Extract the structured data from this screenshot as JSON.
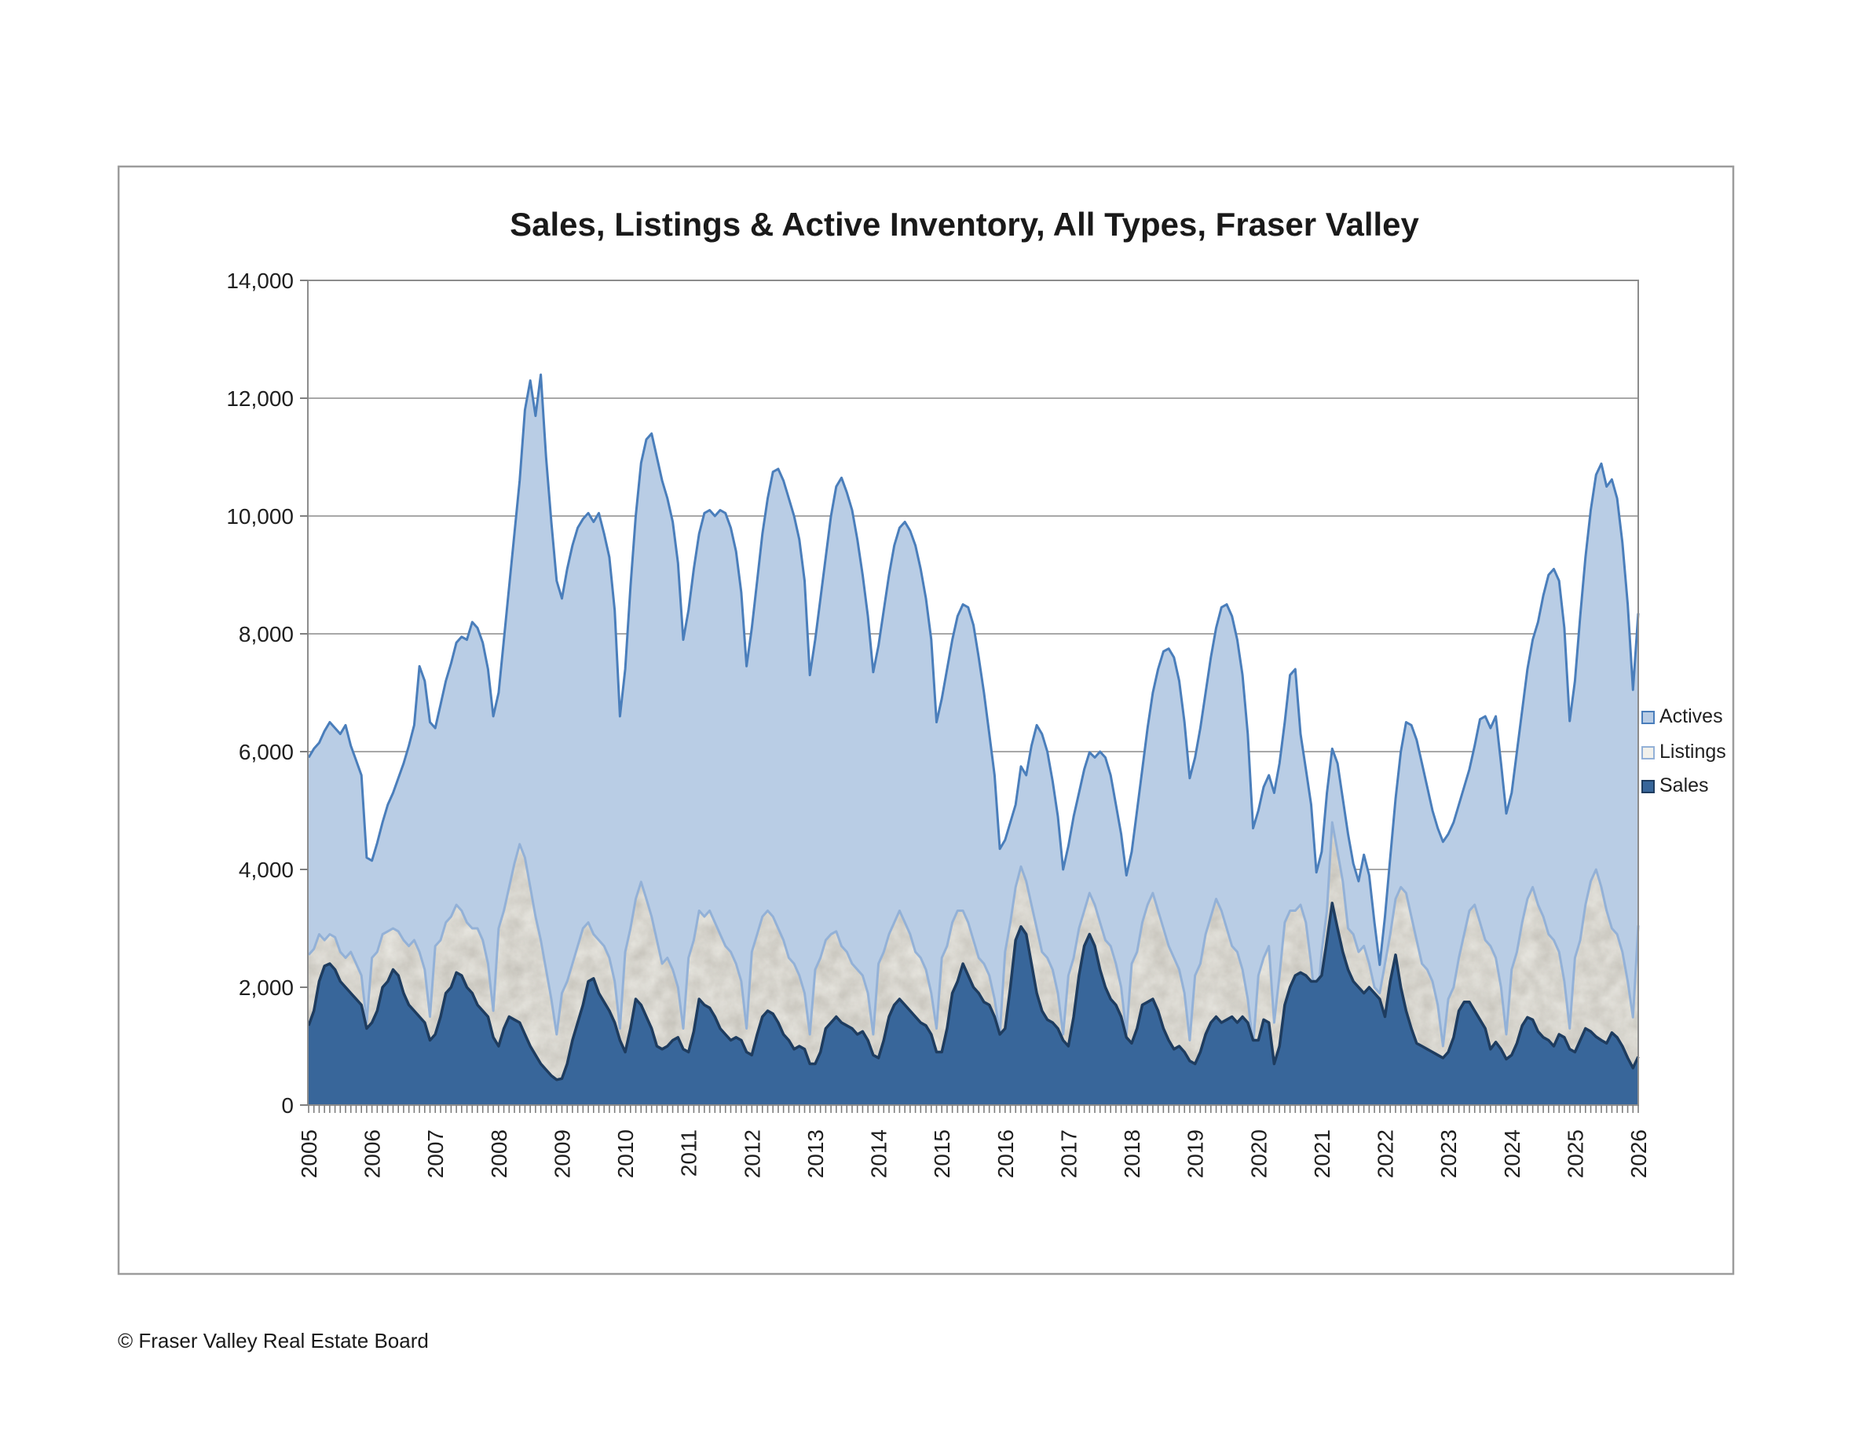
{
  "title": "Sales, Listings & Active Inventory, All Types, Fraser Valley",
  "footer": "© Fraser Valley Real Estate Board",
  "legend": {
    "position": "right",
    "items": [
      "Actives",
      "Listings",
      "Sales"
    ]
  },
  "colors": {
    "actives_fill": "#B9CDE5",
    "actives_border": "#4A7EBB",
    "listings_fill": "#F2F1EB",
    "listings_border": "#93B1D7",
    "listings_texture": "#AFABA2",
    "sales_fill": "#38669A",
    "sales_border": "#1E3C5F",
    "gridline": "#8C8C8C",
    "axis": "#7F7F7F",
    "chart_border": "#9C9C9C"
  },
  "chart_data": {
    "type": "area",
    "mode": "overlapping",
    "title": "Sales, Listings & Active Inventory, All Types, Fraser Valley",
    "xlabel": "",
    "ylabel": "",
    "x_start": "2005-01",
    "x_end": "2026-01",
    "x_frequency": "monthly",
    "x_tick_labels": [
      "2005",
      "2006",
      "2007",
      "2008",
      "2009",
      "2010",
      "2011",
      "2012",
      "2013",
      "2014",
      "2015",
      "2016",
      "2017",
      "2018",
      "2019",
      "2020",
      "2021",
      "2022",
      "2023",
      "2024",
      "2025",
      "2026"
    ],
    "ylim": [
      0,
      14000
    ],
    "y_ticks": [
      0,
      2000,
      4000,
      6000,
      8000,
      10000,
      12000,
      14000
    ],
    "y_tick_labels": [
      "0",
      "2,000",
      "4,000",
      "6,000",
      "8,000",
      "10,000",
      "12,000",
      "14,000"
    ],
    "grid": "horizontal",
    "legend_position": "right",
    "series": [
      {
        "name": "Actives",
        "values_by_year": [
          [
            5900,
            6050,
            6150,
            6350,
            6500,
            6400,
            6300,
            6450,
            6100,
            5850,
            5600,
            4200
          ],
          [
            4150,
            4450,
            4800,
            5100,
            5300,
            5550,
            5800,
            6100,
            6450,
            7450,
            7200,
            6500
          ],
          [
            6400,
            6800,
            7200,
            7500,
            7850,
            7950,
            7900,
            8200,
            8100,
            7850,
            7400,
            6600
          ],
          [
            7000,
            7900,
            8800,
            9700,
            10600,
            11800,
            12300,
            11700,
            12400,
            11000,
            9900,
            8900
          ],
          [
            8600,
            9100,
            9500,
            9800,
            9950,
            10050,
            9900,
            10050,
            9700,
            9300,
            8400,
            6600
          ],
          [
            7400,
            8800,
            10000,
            10900,
            11300,
            11400,
            11000,
            10600,
            10300,
            9900,
            9200,
            7900
          ],
          [
            8400,
            9100,
            9700,
            10050,
            10100,
            10000,
            10100,
            10050,
            9800,
            9400,
            8700,
            7450
          ],
          [
            8100,
            8900,
            9700,
            10300,
            10750,
            10800,
            10600,
            10300,
            10000,
            9600,
            8900,
            7300
          ],
          [
            7900,
            8600,
            9300,
            10000,
            10500,
            10650,
            10400,
            10100,
            9600,
            9000,
            8300,
            7350
          ],
          [
            7800,
            8400,
            9000,
            9500,
            9800,
            9900,
            9750,
            9500,
            9100,
            8600,
            7900,
            6500
          ],
          [
            6900,
            7400,
            7900,
            8300,
            8500,
            8450,
            8150,
            7600,
            7000,
            6300,
            5600,
            4350
          ],
          [
            4500,
            4800,
            5100,
            5750,
            5600,
            6100,
            6450,
            6300,
            6000,
            5500,
            4900,
            4000
          ],
          [
            4400,
            4900,
            5300,
            5700,
            5990,
            5900,
            6000,
            5900,
            5600,
            5100,
            4600,
            3900
          ],
          [
            4300,
            5000,
            5700,
            6400,
            7000,
            7400,
            7700,
            7750,
            7600,
            7200,
            6500,
            5550
          ],
          [
            5900,
            6400,
            7000,
            7600,
            8100,
            8450,
            8500,
            8300,
            7900,
            7300,
            6300,
            4700
          ],
          [
            5000,
            5400,
            5600,
            5300,
            5800,
            6500,
            7300,
            7400,
            6300,
            5700,
            5100,
            3950
          ],
          [
            4300,
            5300,
            6050,
            5800,
            5200,
            4600,
            4100,
            3800,
            4250,
            3900,
            3100,
            2380
          ],
          [
            3200,
            4200,
            5200,
            6000,
            6500,
            6450,
            6200,
            5800,
            5400,
            5000,
            4700,
            4470
          ],
          [
            4600,
            4800,
            5100,
            5400,
            5700,
            6100,
            6550,
            6600,
            6400,
            6600,
            5800,
            4950
          ],
          [
            5300,
            6000,
            6700,
            7400,
            7900,
            8200,
            8650,
            9000,
            9100,
            8900,
            8100,
            6520
          ],
          [
            7200,
            8300,
            9300,
            10100,
            10700,
            10890,
            10500,
            10620,
            10300,
            9550,
            8500,
            7050
          ],
          [
            8350
          ]
        ]
      },
      {
        "name": "Listings",
        "values_by_year": [
          [
            2550,
            2650,
            2900,
            2800,
            2900,
            2850,
            2600,
            2500,
            2600,
            2400,
            2200,
            1400
          ],
          [
            2500,
            2600,
            2900,
            2950,
            3000,
            2950,
            2800,
            2700,
            2800,
            2600,
            2300,
            1500
          ],
          [
            2700,
            2800,
            3100,
            3200,
            3400,
            3300,
            3100,
            3000,
            3000,
            2800,
            2400,
            1600
          ],
          [
            3000,
            3300,
            3700,
            4100,
            4430,
            4200,
            3700,
            3200,
            2800,
            2300,
            1800,
            1200
          ],
          [
            1900,
            2100,
            2400,
            2700,
            3000,
            3100,
            2900,
            2800,
            2700,
            2500,
            2100,
            1300
          ],
          [
            2600,
            3000,
            3500,
            3790,
            3500,
            3200,
            2800,
            2400,
            2500,
            2300,
            2000,
            1300
          ],
          [
            2500,
            2800,
            3300,
            3200,
            3300,
            3100,
            2900,
            2700,
            2600,
            2400,
            2100,
            1300
          ],
          [
            2600,
            2900,
            3200,
            3300,
            3200,
            3000,
            2800,
            2500,
            2400,
            2200,
            1900,
            1200
          ],
          [
            2300,
            2500,
            2800,
            2900,
            2950,
            2700,
            2600,
            2400,
            2300,
            2200,
            1900,
            1200
          ],
          [
            2400,
            2600,
            2900,
            3100,
            3300,
            3100,
            2900,
            2600,
            2500,
            2300,
            1900,
            1300
          ],
          [
            2500,
            2700,
            3100,
            3300,
            3300,
            3100,
            2800,
            2500,
            2400,
            2200,
            1800,
            1200
          ],
          [
            2600,
            3100,
            3700,
            4050,
            3800,
            3400,
            3000,
            2600,
            2500,
            2300,
            1900,
            1200
          ],
          [
            2200,
            2500,
            3000,
            3300,
            3600,
            3400,
            3100,
            2800,
            2700,
            2400,
            2000,
            1200
          ],
          [
            2400,
            2600,
            3100,
            3400,
            3600,
            3300,
            3000,
            2700,
            2500,
            2300,
            1900,
            1100
          ],
          [
            2200,
            2400,
            2900,
            3200,
            3500,
            3300,
            3000,
            2700,
            2600,
            2300,
            1800,
            1000
          ],
          [
            2200,
            2500,
            2700,
            1400,
            2200,
            3100,
            3300,
            3300,
            3400,
            3100,
            2400,
            1500
          ],
          [
            2600,
            3300,
            4800,
            4300,
            3800,
            3000,
            2900,
            2600,
            2700,
            2400,
            2000,
            1900
          ],
          [
            2400,
            2900,
            3500,
            3700,
            3600,
            3200,
            2800,
            2400,
            2300,
            2100,
            1700,
            1000
          ],
          [
            1800,
            2000,
            2500,
            2900,
            3300,
            3400,
            3100,
            2800,
            2700,
            2500,
            2000,
            1200
          ],
          [
            2300,
            2600,
            3100,
            3500,
            3700,
            3400,
            3200,
            2900,
            2800,
            2600,
            2100,
            1300
          ],
          [
            2500,
            2800,
            3400,
            3800,
            4000,
            3700,
            3300,
            3000,
            2900,
            2600,
            2100,
            1490
          ],
          [
            3050
          ]
        ]
      },
      {
        "name": "Sales",
        "values_by_year": [
          [
            1350,
            1600,
            2100,
            2360,
            2400,
            2300,
            2100,
            2000,
            1900,
            1800,
            1700,
            1300
          ],
          [
            1400,
            1600,
            2000,
            2100,
            2300,
            2200,
            1900,
            1700,
            1600,
            1500,
            1400,
            1100
          ],
          [
            1200,
            1500,
            1900,
            2000,
            2250,
            2200,
            2000,
            1900,
            1700,
            1600,
            1500,
            1150
          ],
          [
            1000,
            1300,
            1500,
            1450,
            1400,
            1200,
            1000,
            850,
            700,
            600,
            500,
            430
          ],
          [
            450,
            700,
            1100,
            1400,
            1700,
            2100,
            2150,
            1900,
            1750,
            1600,
            1400,
            1100
          ],
          [
            900,
            1300,
            1800,
            1700,
            1500,
            1300,
            1000,
            950,
            1000,
            1100,
            1150,
            950
          ],
          [
            900,
            1250,
            1800,
            1700,
            1650,
            1500,
            1300,
            1200,
            1100,
            1150,
            1100,
            900
          ],
          [
            850,
            1200,
            1500,
            1600,
            1550,
            1400,
            1200,
            1100,
            950,
            1000,
            950,
            700
          ],
          [
            700,
            900,
            1300,
            1400,
            1500,
            1400,
            1350,
            1300,
            1200,
            1250,
            1100,
            850
          ],
          [
            800,
            1100,
            1500,
            1700,
            1800,
            1700,
            1600,
            1500,
            1400,
            1350,
            1200,
            900
          ],
          [
            900,
            1300,
            1900,
            2100,
            2400,
            2200,
            2000,
            1900,
            1750,
            1700,
            1500,
            1200
          ],
          [
            1300,
            2000,
            2800,
            3030,
            2900,
            2400,
            1900,
            1600,
            1450,
            1400,
            1300,
            1100
          ],
          [
            1000,
            1500,
            2200,
            2700,
            2900,
            2700,
            2300,
            2000,
            1800,
            1700,
            1500,
            1150
          ],
          [
            1050,
            1300,
            1700,
            1750,
            1800,
            1600,
            1300,
            1100,
            950,
            1000,
            900,
            750
          ],
          [
            700,
            900,
            1200,
            1400,
            1500,
            1400,
            1450,
            1500,
            1400,
            1500,
            1400,
            1100
          ],
          [
            1100,
            1450,
            1400,
            700,
            1000,
            1700,
            2000,
            2200,
            2250,
            2200,
            2100,
            2100
          ],
          [
            2200,
            2800,
            3430,
            3000,
            2600,
            2300,
            2100,
            2000,
            1900,
            2000,
            1900,
            1800
          ],
          [
            1500,
            2100,
            2550,
            2000,
            1600,
            1300,
            1050,
            1000,
            950,
            900,
            850,
            800
          ],
          [
            900,
            1150,
            1600,
            1750,
            1750,
            1600,
            1450,
            1300,
            950,
            1070,
            950,
            780
          ],
          [
            850,
            1050,
            1350,
            1490,
            1450,
            1250,
            1150,
            1100,
            1000,
            1200,
            1150,
            950
          ],
          [
            900,
            1100,
            1300,
            1250,
            1160,
            1100,
            1050,
            1230,
            1150,
            1000,
            800,
            630
          ],
          [
            820
          ]
        ]
      }
    ]
  }
}
